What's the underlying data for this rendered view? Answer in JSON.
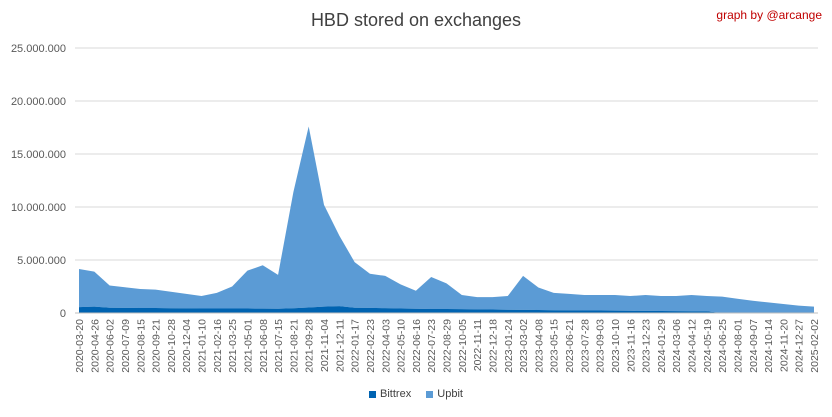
{
  "credit": "graph by @arcange",
  "chart_data": {
    "type": "area",
    "title": "HBD stored on exchanges",
    "xlabel": "",
    "ylabel": "",
    "ylim": [
      0,
      25000000
    ],
    "yticks": [
      "0",
      "5.000.000",
      "10.000.000",
      "15.000.000",
      "20.000.000",
      "25.000.000"
    ],
    "grid": true,
    "legend_position": "bottom",
    "stacked": true,
    "x": [
      "2020-03-20",
      "2020-04-26",
      "2020-06-02",
      "2020-07-09",
      "2020-08-15",
      "2020-09-21",
      "2020-10-28",
      "2020-12-04",
      "2021-01-10",
      "2021-02-16",
      "2021-03-25",
      "2021-05-01",
      "2021-06-08",
      "2021-07-15",
      "2021-08-21",
      "2021-09-28",
      "2021-11-04",
      "2021-12-11",
      "2022-01-17",
      "2022-02-23",
      "2022-04-03",
      "2022-05-10",
      "2022-06-16",
      "2022-07-23",
      "2022-08-29",
      "2022-10-05",
      "2022-11-11",
      "2022-12-18",
      "2023-01-24",
      "2023-03-02",
      "2023-04-08",
      "2023-05-15",
      "2023-06-21",
      "2023-07-28",
      "2023-09-03",
      "2023-10-10",
      "2023-11-16",
      "2023-12-23",
      "2024-01-29",
      "2024-03-06",
      "2024-04-12",
      "2024-05-19",
      "2024-06-25",
      "2024-08-01",
      "2024-09-07",
      "2024-10-14",
      "2024-11-20",
      "2024-12-27",
      "2025-02-02"
    ],
    "series": [
      {
        "name": "Bittrex",
        "color": "#0063b1",
        "values": [
          550000,
          600000,
          500000,
          480000,
          470000,
          470000,
          450000,
          440000,
          430000,
          430000,
          420000,
          420000,
          410000,
          400000,
          450000,
          520000,
          600000,
          650000,
          500000,
          480000,
          460000,
          430000,
          400000,
          380000,
          380000,
          360000,
          340000,
          330000,
          310000,
          300000,
          280000,
          260000,
          250000,
          240000,
          230000,
          220000,
          210000,
          200000,
          190000,
          180000,
          170000,
          160000,
          0,
          0,
          0,
          0,
          0,
          0,
          0
        ]
      },
      {
        "name": "Upbit",
        "color": "#5b9bd5",
        "values": [
          3600000,
          3300000,
          2100000,
          1950000,
          1800000,
          1730000,
          1550000,
          1360000,
          1170000,
          1470000,
          2080000,
          3580000,
          4090000,
          3200000,
          10950000,
          17080000,
          9600000,
          6650000,
          4300000,
          3220000,
          3040000,
          2270000,
          1700000,
          3020000,
          2420000,
          1340000,
          1160000,
          1170000,
          1290000,
          3200000,
          2120000,
          1640000,
          1550000,
          1460000,
          1470000,
          1480000,
          1390000,
          1500000,
          1410000,
          1420000,
          1530000,
          1440000,
          1550000,
          1350000,
          1150000,
          1000000,
          850000,
          700000,
          600000
        ]
      }
    ]
  }
}
